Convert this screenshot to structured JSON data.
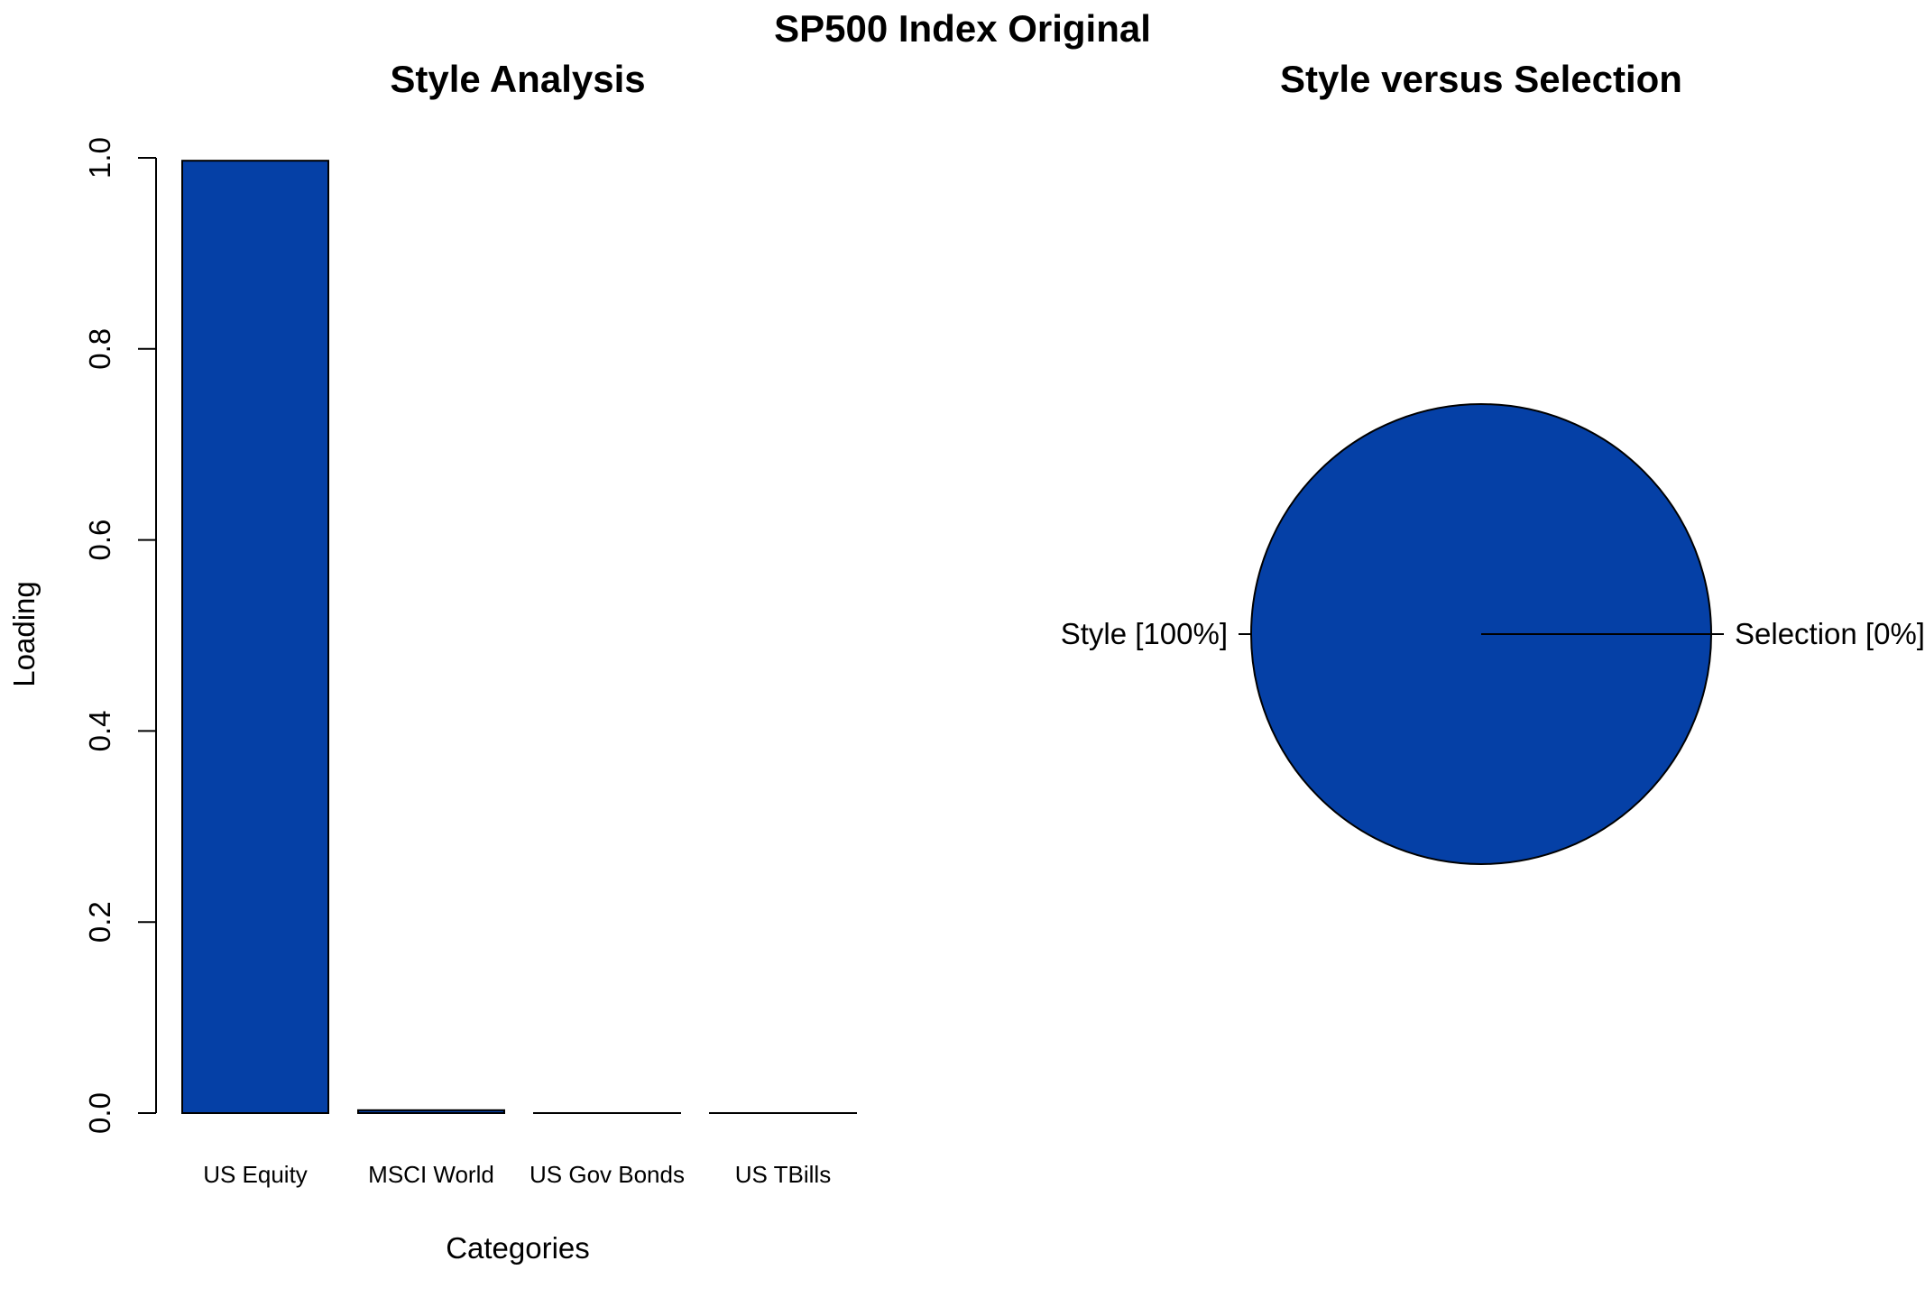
{
  "figure": {
    "title": "SP500 Index Original"
  },
  "colors": {
    "bar_fill": "#0540A6",
    "pie_fill": "#0540A6",
    "stroke": "#000000"
  },
  "chart_data": [
    {
      "type": "bar",
      "title": "Style Analysis",
      "xlabel": "Categories",
      "ylabel": "Loading",
      "categories": [
        "US Equity",
        "MSCI World",
        "US Gov Bonds",
        "US TBills"
      ],
      "values": [
        0.997,
        0.003,
        0.0,
        0.0
      ],
      "ylim": [
        0,
        1.0
      ],
      "yticks": [
        "0.0",
        "0.2",
        "0.4",
        "0.6",
        "0.8",
        "1.0"
      ],
      "grid": false,
      "legend": "none"
    },
    {
      "type": "pie",
      "title": "Style versus Selection",
      "labels": [
        "Style [100%]",
        "Selection [0%]"
      ],
      "values": [
        100,
        0
      ],
      "legend": "none"
    }
  ]
}
